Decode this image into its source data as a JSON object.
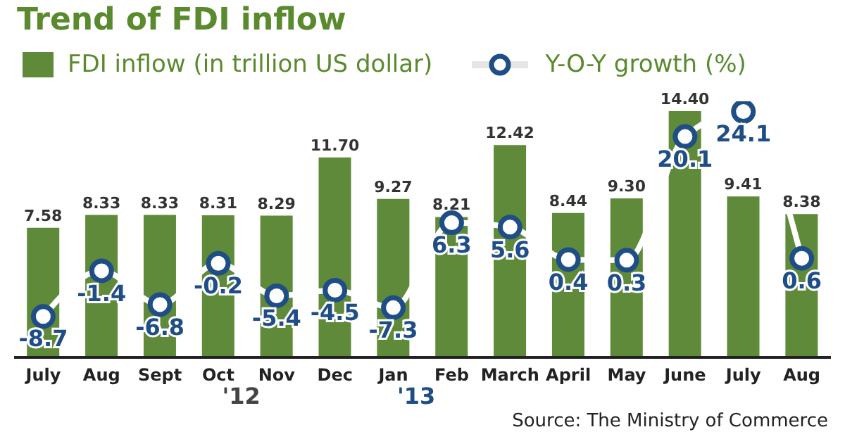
{
  "chart_data": {
    "type": "bar",
    "title": "Trend of FDI inflow",
    "categories": [
      "July",
      "Aug",
      "Sept",
      "Oct",
      "Nov",
      "Dec",
      "Jan",
      "Feb",
      "March",
      "April",
      "May",
      "June",
      "July",
      "Aug"
    ],
    "series": [
      {
        "name": "FDI inflow (in trillion US dollar)",
        "color": "#5e8a3a",
        "values": [
          7.58,
          8.33,
          8.33,
          8.31,
          8.29,
          11.7,
          9.27,
          8.21,
          12.42,
          8.44,
          9.3,
          14.4,
          9.41,
          8.38
        ],
        "value_labels": [
          "7.58",
          "8.33",
          "8.33",
          "8.31",
          "8.29",
          "11.70",
          "9.27",
          "8.21",
          "12.42",
          "8.44",
          "9.30",
          "14.40",
          "9.41",
          "8.38"
        ]
      },
      {
        "name": "Y-O-Y growth (%)",
        "type": "line",
        "axis": "y2",
        "color": "#1f4e87",
        "values": [
          -8.7,
          -1.4,
          -6.8,
          -0.2,
          -5.4,
          -4.5,
          -7.3,
          6.3,
          5.6,
          0.4,
          0.3,
          20.1,
          24.1,
          0.6
        ]
      }
    ],
    "data_labels": true,
    "tick_labels": "x",
    "legend": "top left",
    "marker": "circle",
    "annotations": [
      "'12",
      "'13",
      "Source: The Ministry of Commerce"
    ]
  }
}
